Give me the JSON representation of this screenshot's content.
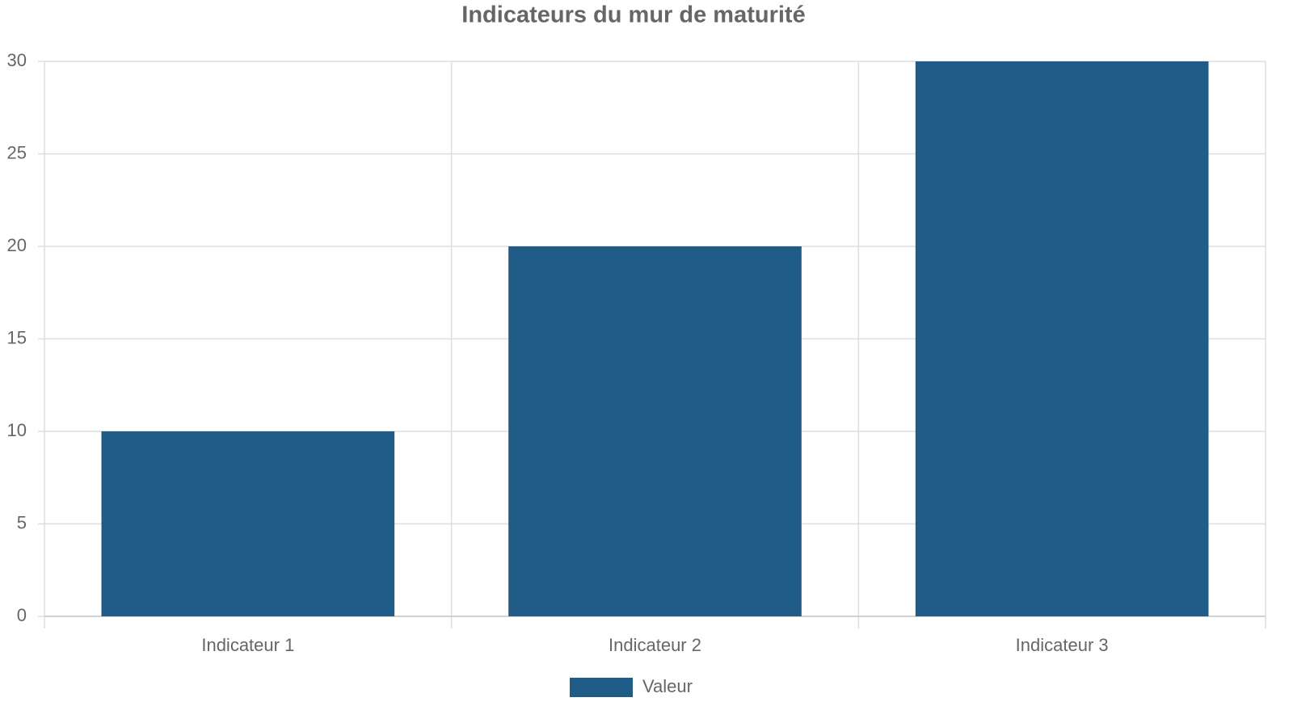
{
  "chart_data": {
    "type": "bar",
    "title": "Indicateurs du mur de maturité",
    "categories": [
      "Indicateur 1",
      "Indicateur 2",
      "Indicateur 3"
    ],
    "series": [
      {
        "name": "Valeur",
        "color": "#1f5c87",
        "values": [
          10,
          20,
          30
        ]
      }
    ],
    "ylim": [
      0,
      30
    ],
    "yticks": [
      0,
      5,
      10,
      15,
      20,
      25,
      30
    ],
    "grid": true,
    "legend": "bottom"
  }
}
